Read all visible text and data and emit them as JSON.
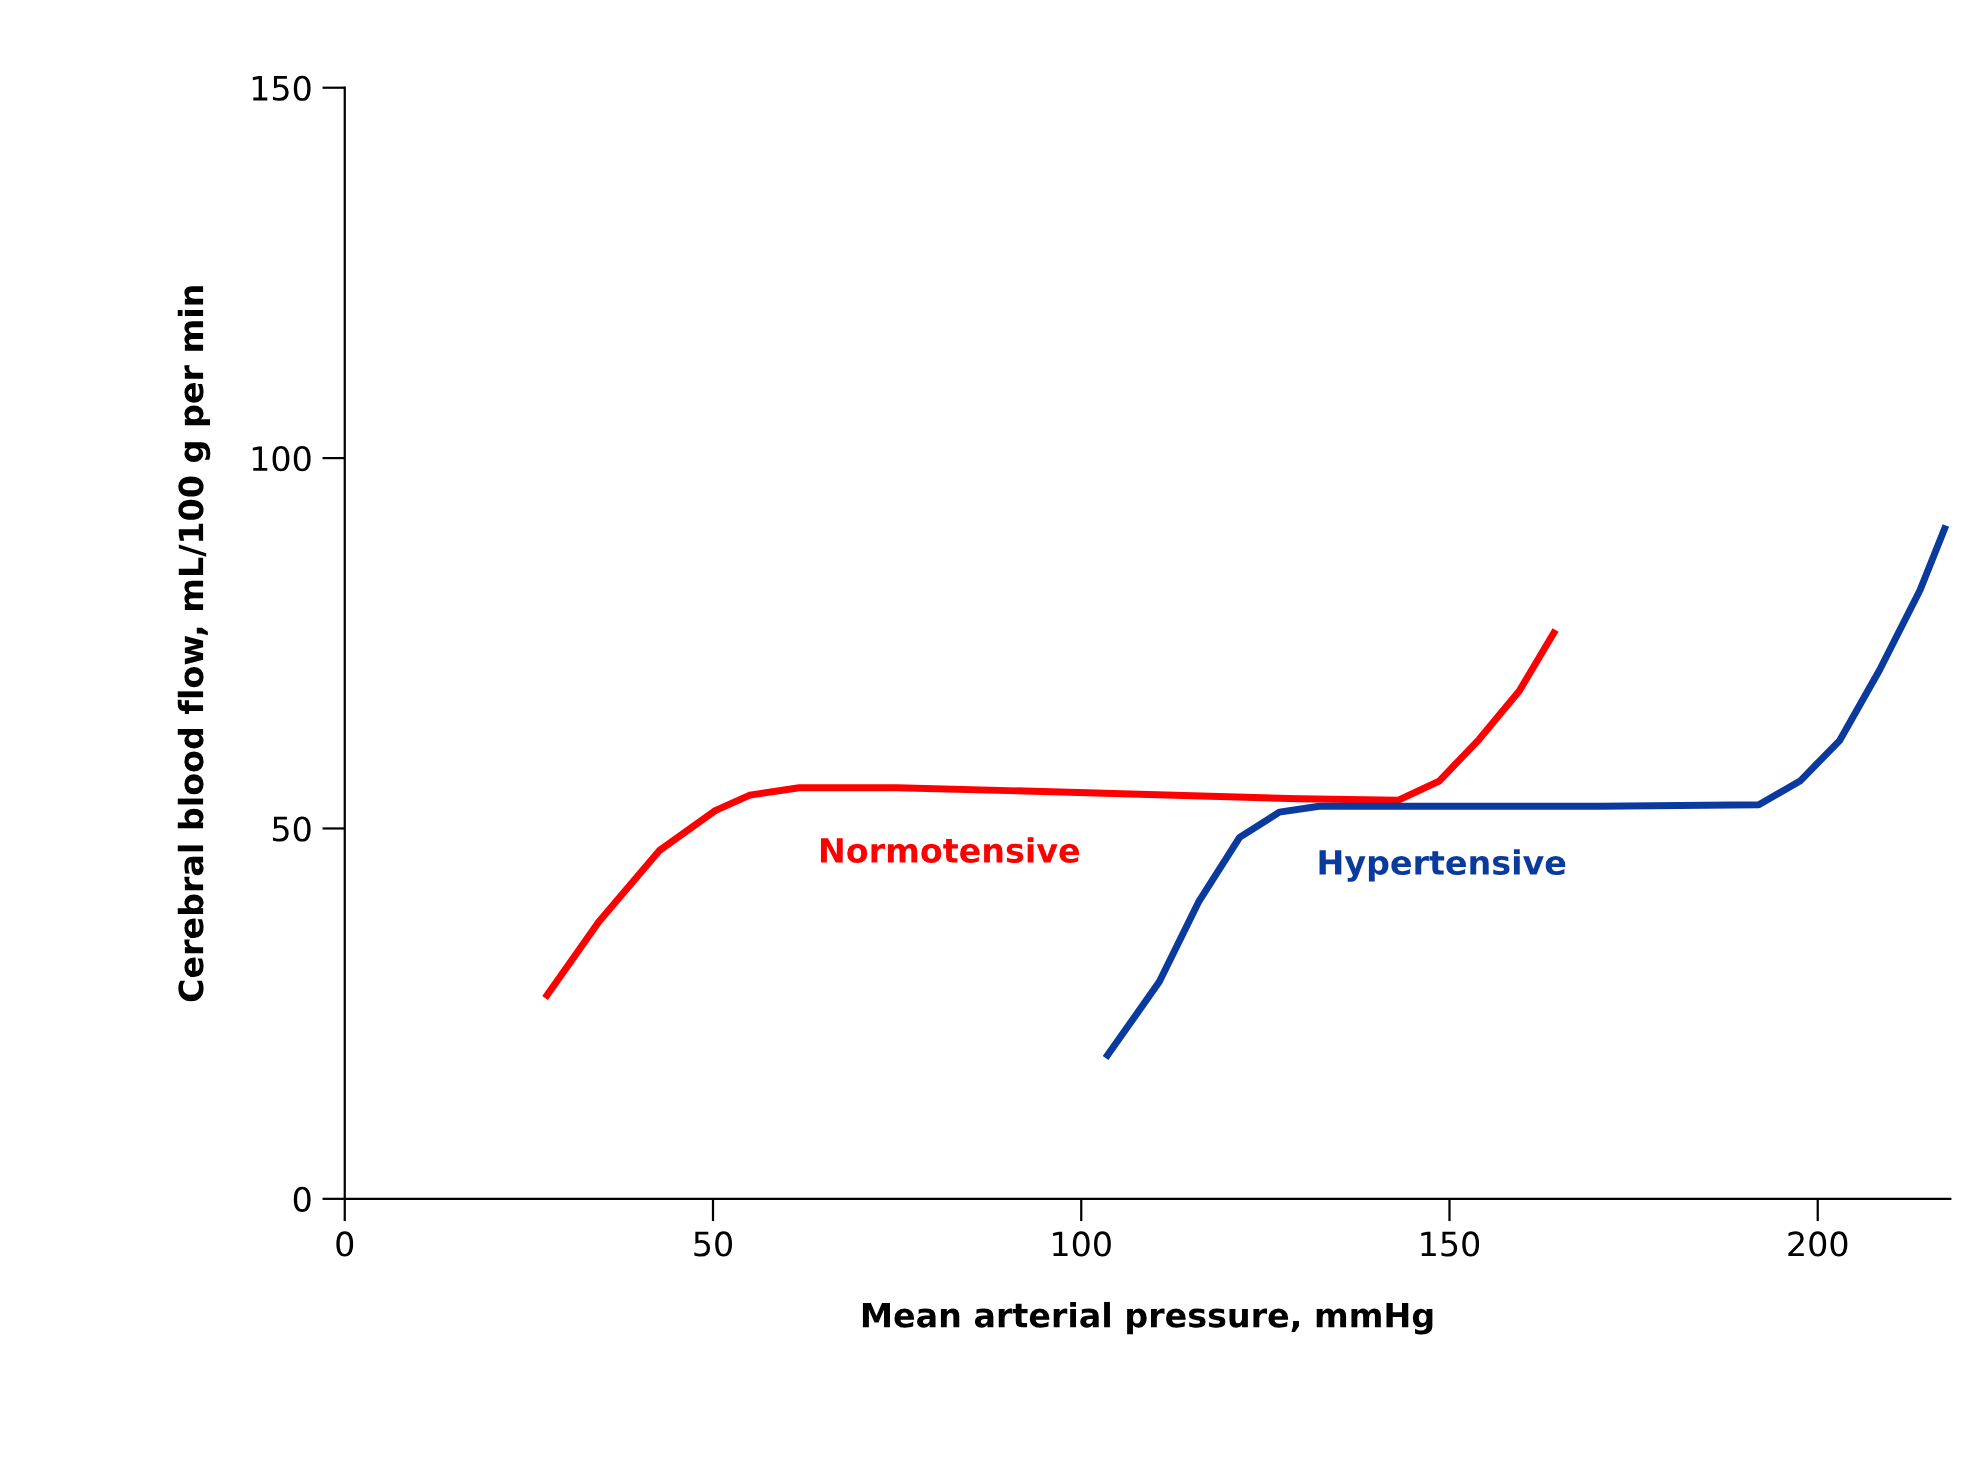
{
  "chart_data": {
    "type": "line",
    "xlabel": "Mean arterial pressure, mmHg",
    "ylabel": "Cerebral blood flow, mL/100 g per min",
    "xlim": [
      0,
      218
    ],
    "ylim": [
      0,
      150
    ],
    "xticks": [
      0,
      50,
      100,
      150,
      200
    ],
    "yticks": [
      0,
      50,
      100,
      150
    ],
    "grid": false,
    "legend": false,
    "series": [
      {
        "name": "Normotensive",
        "color": "#ff0000",
        "x": [
          27.2,
          34.5,
          42.7,
          50.3,
          55,
          61.7,
          75,
          102,
          129.6,
          143,
          148.6,
          154,
          159.5,
          164.4
        ],
        "values": [
          27.1,
          37.4,
          47,
          52.4,
          54.5,
          55.5,
          55.5,
          54.8,
          54,
          53.8,
          56.4,
          62,
          68.6,
          76.8
        ]
      },
      {
        "name": "Hypertensive",
        "color": "#0a3a9e",
        "x": [
          103.3,
          110.6,
          116,
          121.5,
          126.9,
          132.3,
          143.2,
          170.4,
          192,
          197.6,
          203,
          208.4,
          213.9,
          217.4
        ],
        "values": [
          19,
          29.3,
          40.2,
          48.8,
          52.2,
          53,
          53,
          53,
          53.2,
          56.4,
          61.9,
          71.4,
          82.2,
          90.9
        ]
      }
    ]
  }
}
